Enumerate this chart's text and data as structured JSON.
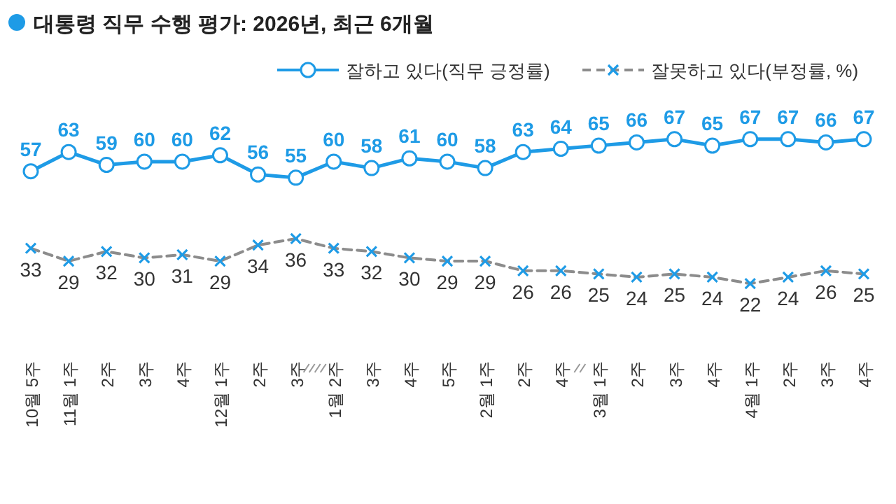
{
  "chart_data": {
    "type": "line",
    "title": "대통령 직무 수행 평가: 2026년, 최근 6개월",
    "categories": [
      "10월 5주",
      "11월 1주",
      "2주",
      "3주",
      "4주",
      "12월 1주",
      "2주",
      "3주",
      "1월 2주",
      "3주",
      "4주",
      "5주",
      "2월 1주",
      "2주",
      "4주",
      "3월 1주",
      "2주",
      "3주",
      "4주",
      "4월 1주",
      "2주",
      "3주",
      "4주"
    ],
    "series": [
      {
        "name": "잘하고 있다(직무 긍정률)",
        "color": "#1e9be6",
        "marker": "circle",
        "line_style": "solid",
        "values": [
          57,
          63,
          59,
          60,
          60,
          62,
          56,
          55,
          60,
          58,
          61,
          60,
          58,
          63,
          64,
          65,
          66,
          67,
          65,
          67,
          67,
          66,
          67
        ]
      },
      {
        "name": "잘못하고 있다(부정률, %)",
        "color": "#8c8c8c",
        "marker": "cross",
        "line_style": "dashed",
        "values": [
          33,
          29,
          32,
          30,
          31,
          29,
          34,
          36,
          33,
          32,
          30,
          29,
          29,
          26,
          26,
          25,
          24,
          25,
          24,
          22,
          24,
          26,
          25
        ]
      }
    ],
    "data_labels": true,
    "legend": "top right",
    "grid": false
  }
}
